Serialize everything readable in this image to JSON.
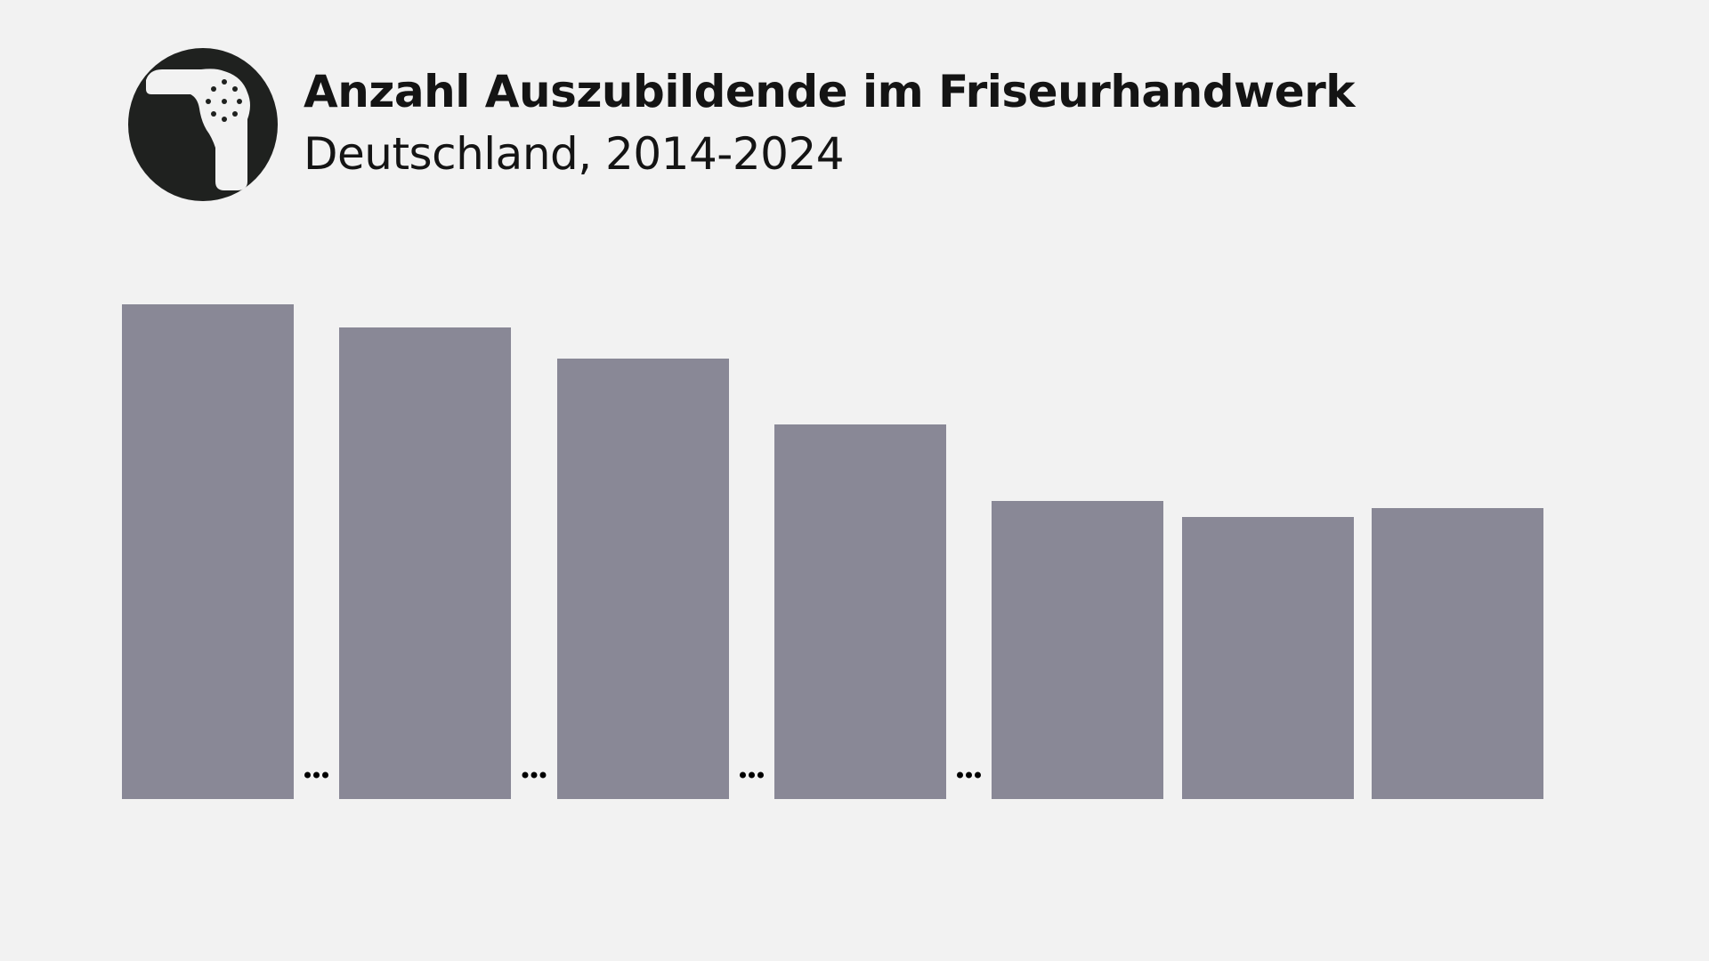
{
  "header": {
    "title": "Anzahl Auszubildende im Friseurhandwerk",
    "subtitle": "Deutschland, 2014-2024",
    "icon": "hair-dryer-icon"
  },
  "chart_data": {
    "type": "bar",
    "title": "Anzahl Auszubildende im Friseurhandwerk",
    "subtitle": "Deutschland, 2014-2024",
    "xlabel": "",
    "ylabel": "",
    "categories": [
      "",
      "",
      "",
      "",
      "",
      "",
      ""
    ],
    "values": [
      556,
      530,
      495,
      421,
      335,
      317,
      327
    ],
    "ylim": [
      0,
      556
    ],
    "axis_breaks_after": [
      0,
      1,
      2,
      3
    ],
    "break_marker": "...",
    "grid": false,
    "legend": "none",
    "bar_color": "#898896",
    "icon_color": "#1f211f",
    "text_color": "#141414",
    "background": "#f2f2f2"
  }
}
